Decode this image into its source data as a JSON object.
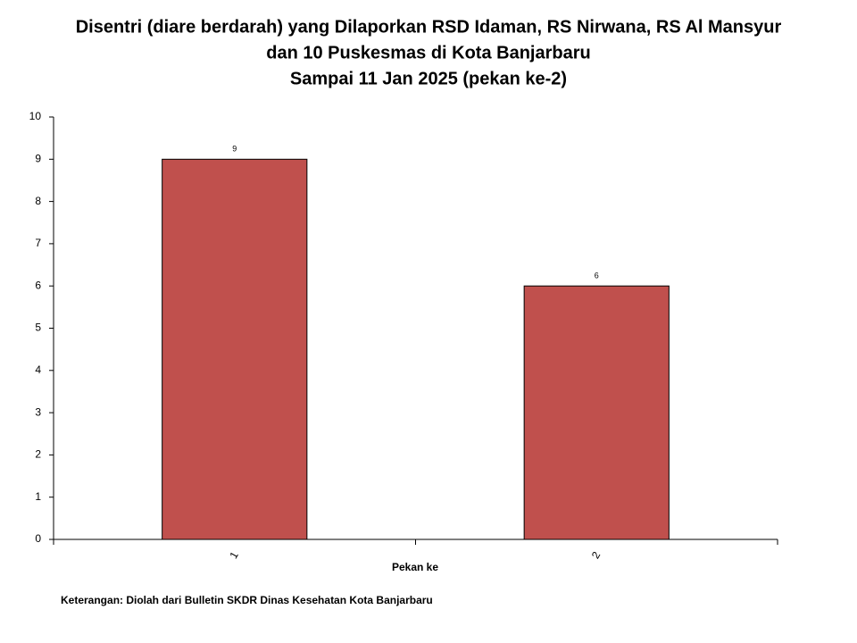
{
  "chart_data": {
    "type": "bar",
    "title": [
      "Disentri (diare berdarah) yang Dilaporkan RSD Idaman, RS Nirwana, RS Al Mansyur",
      "dan 10 Puskesmas di Kota Banjarbaru",
      "Sampai 11 Jan 2025 (pekan ke-2)"
    ],
    "x_label": "Pekan ke",
    "note": "Keterangan: Diolah dari Bulletin SKDR Dinas Kesehatan Kota Banjarbaru",
    "categories": [
      "1",
      "2"
    ],
    "values": [
      9,
      6
    ],
    "color": "#c0504d",
    "ylim": [
      0,
      10
    ],
    "yticks": [
      0,
      1,
      2,
      3,
      4,
      5,
      6,
      7,
      8,
      9,
      10
    ],
    "grid": false
  }
}
